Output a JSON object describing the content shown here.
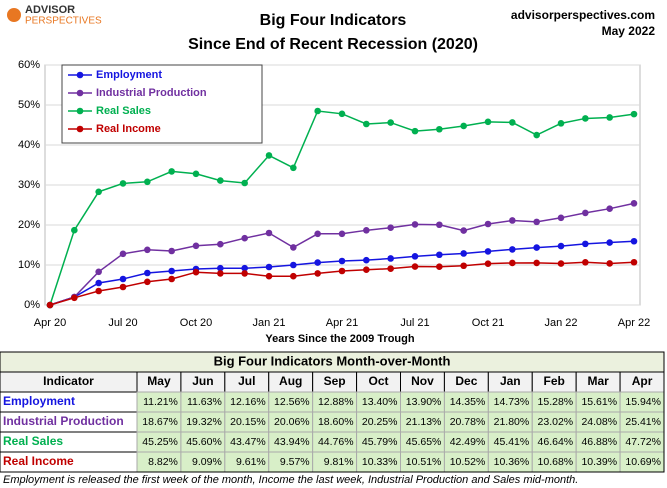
{
  "header": {
    "brand_top": "ADVISOR",
    "brand_bottom": "PERSPECTIVES",
    "site": "advisorperspectives.com",
    "date": "May 2022"
  },
  "chart_data": {
    "type": "line",
    "title": "Big Four Indicators",
    "subtitle": "Since  End of Recent Recession (2020)",
    "x_label": "Years Since the 2009 Trough",
    "categories": [
      "Apr 20",
      null,
      null,
      "Jul 20",
      null,
      null,
      "Oct 20",
      null,
      null,
      "Jan 21",
      null,
      null,
      "Apr 21",
      null,
      null,
      "Jul 21",
      null,
      null,
      "Oct 21",
      null,
      null,
      "Jan 22",
      null,
      null,
      "Apr 22"
    ],
    "series": [
      {
        "name": "Employment",
        "color": "#1515e0",
        "values": [
          0,
          2,
          5.5,
          6.5,
          8,
          8.5,
          9,
          9.2,
          9.2,
          9.5,
          10,
          10.6,
          11,
          11.21,
          11.63,
          12.16,
          12.56,
          12.88,
          13.4,
          13.9,
          14.35,
          14.73,
          15.28,
          15.61,
          15.94
        ]
      },
      {
        "name": "Industrial Production",
        "color": "#7030a0",
        "values": [
          0,
          2,
          8.3,
          12.8,
          13.8,
          13.5,
          14.8,
          15.2,
          16.7,
          18,
          14.4,
          17.8,
          17.8,
          18.67,
          19.32,
          20.15,
          20.06,
          18.6,
          20.25,
          21.13,
          20.78,
          21.8,
          23.02,
          24.08,
          25.41
        ]
      },
      {
        "name": "Real Sales",
        "color": "#00b050",
        "values": [
          0,
          18.7,
          28.3,
          30.4,
          30.8,
          33.4,
          32.8,
          31.1,
          30.5,
          37.4,
          34.3,
          48.5,
          47.8,
          45.25,
          45.6,
          43.47,
          43.94,
          44.76,
          45.79,
          45.65,
          42.49,
          45.41,
          46.64,
          46.88,
          47.72
        ]
      },
      {
        "name": "Real Income",
        "color": "#c00000",
        "values": [
          0,
          1.8,
          3.5,
          4.5,
          5.8,
          6.5,
          8.2,
          7.9,
          7.9,
          7.2,
          7.2,
          7.9,
          8.5,
          8.82,
          9.09,
          9.61,
          9.57,
          9.81,
          10.33,
          10.51,
          10.52,
          10.36,
          10.68,
          10.39,
          10.69
        ]
      }
    ],
    "ylim": [
      0,
      60
    ],
    "yticks": [
      {
        "value": 0,
        "label": "0%"
      },
      {
        "value": 10,
        "label": "10%"
      },
      {
        "value": 20,
        "label": "20%"
      },
      {
        "value": 30,
        "label": "30%"
      },
      {
        "value": 40,
        "label": "40%"
      },
      {
        "value": 50,
        "label": "50%"
      },
      {
        "value": 60,
        "label": "60%"
      }
    ],
    "grid": true,
    "legend": "upper left"
  },
  "table": {
    "title": "Big Four Indicators Month-over-Month",
    "columns": [
      "Indicator",
      "May",
      "Jun",
      "Jul",
      "Aug",
      "Sep",
      "Oct",
      "Nov",
      "Dec",
      "Jan",
      "Feb",
      "Mar",
      "Apr"
    ],
    "rows": [
      {
        "label": "Employment",
        "color": "#1515e0",
        "cells": [
          "11.21%",
          "11.63%",
          "12.16%",
          "12.56%",
          "12.88%",
          "13.40%",
          "13.90%",
          "14.35%",
          "14.73%",
          "15.28%",
          "15.61%",
          "15.94%"
        ]
      },
      {
        "label": "Industrial Production",
        "color": "#7030a0",
        "cells": [
          "18.67%",
          "19.32%",
          "20.15%",
          "20.06%",
          "18.60%",
          "20.25%",
          "21.13%",
          "20.78%",
          "21.80%",
          "23.02%",
          "24.08%",
          "25.41%"
        ]
      },
      {
        "label": "Real Sales",
        "color": "#00b050",
        "cells": [
          "45.25%",
          "45.60%",
          "43.47%",
          "43.94%",
          "44.76%",
          "45.79%",
          "45.65%",
          "42.49%",
          "45.41%",
          "46.64%",
          "46.88%",
          "47.72%"
        ]
      },
      {
        "label": "Real Income",
        "color": "#c00000",
        "cells": [
          "8.82%",
          "9.09%",
          "9.61%",
          "9.57%",
          "9.81%",
          "10.33%",
          "10.51%",
          "10.52%",
          "10.36%",
          "10.68%",
          "10.39%",
          "10.69%"
        ]
      }
    ]
  },
  "footnote": "Employment is released the first week of the month, Income the last week, Industrial Production and Sales mid-month."
}
